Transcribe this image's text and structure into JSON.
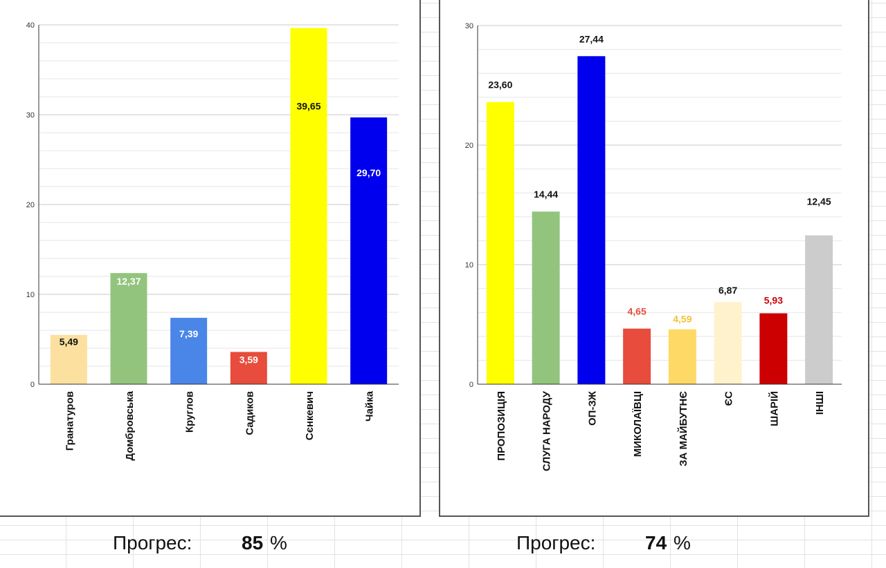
{
  "chart_data": [
    {
      "type": "bar",
      "categories": [
        "Гранатуров",
        "Домбровська",
        "Круглов",
        "Садиков",
        "Сєнкевич",
        "Чайка"
      ],
      "values": [
        5.49,
        12.37,
        7.39,
        3.59,
        39.65,
        29.7
      ],
      "data_labels": [
        "5,49",
        "12,37",
        "7,39",
        "3,59",
        "39,65",
        "29,70"
      ],
      "colors": [
        "#fbe09f",
        "#93c47d",
        "#4a86e8",
        "#e74c3c",
        "#ffff00",
        "#0000ee"
      ],
      "label_colors": [
        "#111111",
        "#ffffff",
        "#ffffff",
        "#ffffff",
        "#111111",
        "#ffffff"
      ],
      "ylim": [
        0,
        40
      ],
      "yticks": [
        "0",
        "10",
        "20",
        "30",
        "40"
      ],
      "grid": true,
      "title": "",
      "xlabel": "",
      "ylabel": ""
    },
    {
      "type": "bar",
      "categories": [
        "ПРОПОЗИЦІЯ",
        "СЛУГА НАРОДУ",
        "ОП-ЗЖ",
        "МИКОЛАЇВЦІ",
        "ЗА МАЙБУТНЄ",
        "ЄС",
        "ШАРІЙ",
        "ІНШІ"
      ],
      "values": [
        23.6,
        14.44,
        27.44,
        4.65,
        4.59,
        6.87,
        5.93,
        12.45
      ],
      "data_labels": [
        "23,60",
        "14,44",
        "27,44",
        "4,65",
        "4,59",
        "6,87",
        "5,93",
        "12,45"
      ],
      "colors": [
        "#ffff00",
        "#93c47d",
        "#0000ee",
        "#e74c3c",
        "#ffd966",
        "#fff2cc",
        "#cc0000",
        "#cccccc"
      ],
      "label_colors": [
        "#111111",
        "#111111",
        "#111111",
        "#e74c3c",
        "#f1c232",
        "#111111",
        "#cc0000",
        "#111111"
      ],
      "ylim": [
        0,
        30
      ],
      "yticks": [
        "0",
        "10",
        "20",
        "30"
      ],
      "grid": true,
      "title": "",
      "xlabel": "",
      "ylabel": ""
    }
  ],
  "progress": [
    {
      "label": "Прогрес:",
      "value": "85",
      "unit": "%"
    },
    {
      "label": "Прогрес:",
      "value": "74",
      "unit": "%"
    }
  ]
}
